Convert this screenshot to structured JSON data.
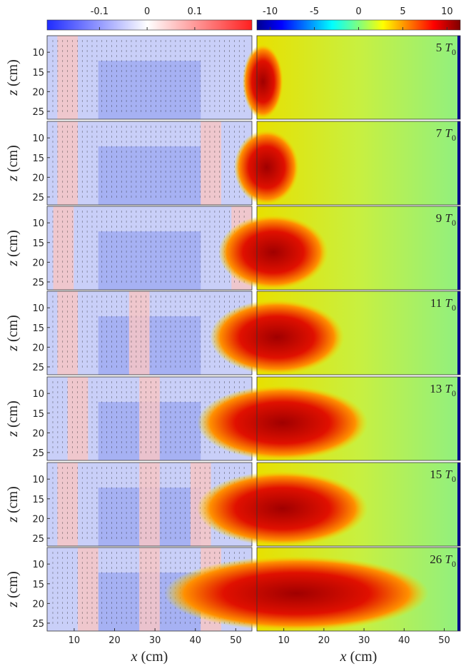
{
  "colorbars": [
    {
      "lim": [
        -0.21,
        0.22
      ],
      "ticks": [
        -0.1,
        0,
        0.1
      ]
    },
    {
      "lim": [
        -11.5,
        11.5
      ],
      "ticks": [
        -10,
        -5,
        0,
        5,
        10
      ]
    }
  ],
  "xaxis": {
    "label_var": "x",
    "label_unit": "(cm)",
    "lim": [
      3.3,
      54
    ],
    "ticks": [
      10,
      20,
      30,
      40,
      50
    ]
  },
  "zaxis": {
    "label_var": "z",
    "label_unit": "(cm)",
    "lim": [
      5.8,
      27
    ],
    "ticks": [
      10,
      15,
      20,
      25
    ]
  },
  "time_symbol": "T",
  "time_subscript": "0",
  "times": [
    "5",
    "7",
    "9",
    "11",
    "13",
    "15",
    "26"
  ]
}
